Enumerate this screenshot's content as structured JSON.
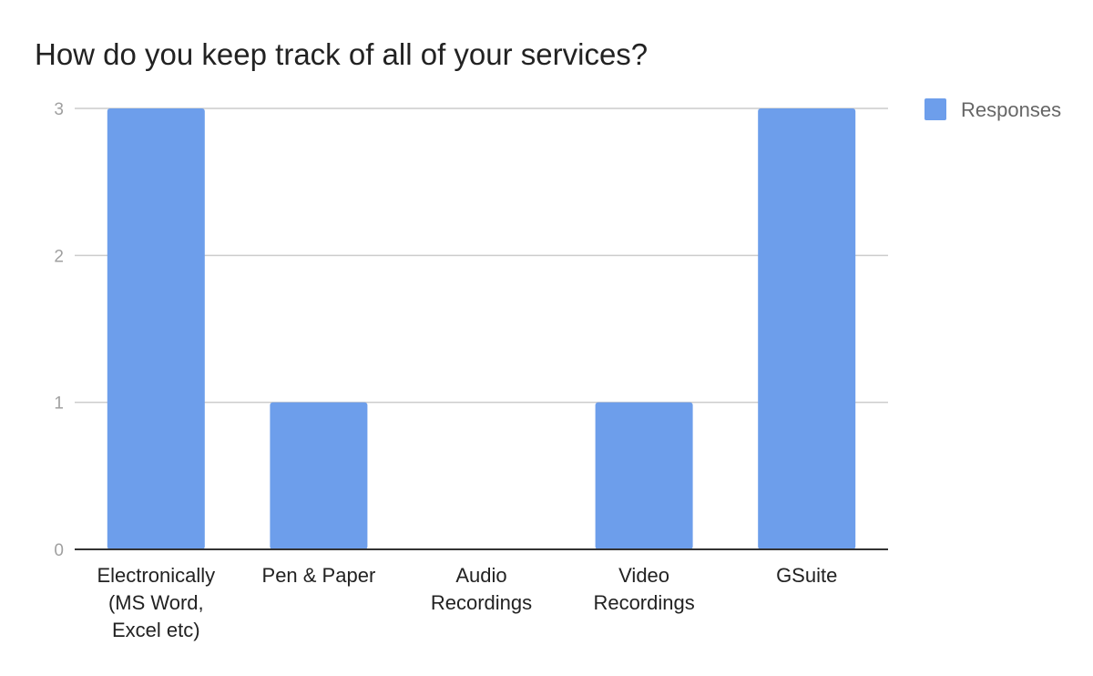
{
  "chart_data": {
    "type": "bar",
    "title": "How do you keep track of all of your services?",
    "xlabel": "",
    "ylabel": "",
    "categories": [
      [
        "Electronically",
        "(MS Word,",
        "Excel etc)"
      ],
      [
        "Pen & Paper"
      ],
      [
        "Audio",
        "Recordings"
      ],
      [
        "Video",
        "Recordings"
      ],
      [
        "GSuite"
      ]
    ],
    "series": [
      {
        "name": "Responses",
        "values": [
          3,
          1,
          0,
          1,
          3
        ],
        "color": "#6d9eeb"
      }
    ],
    "ylim": [
      0,
      3
    ],
    "yticks": [
      "0",
      "1",
      "2",
      "3"
    ],
    "grid": true,
    "legend_position": "right"
  }
}
